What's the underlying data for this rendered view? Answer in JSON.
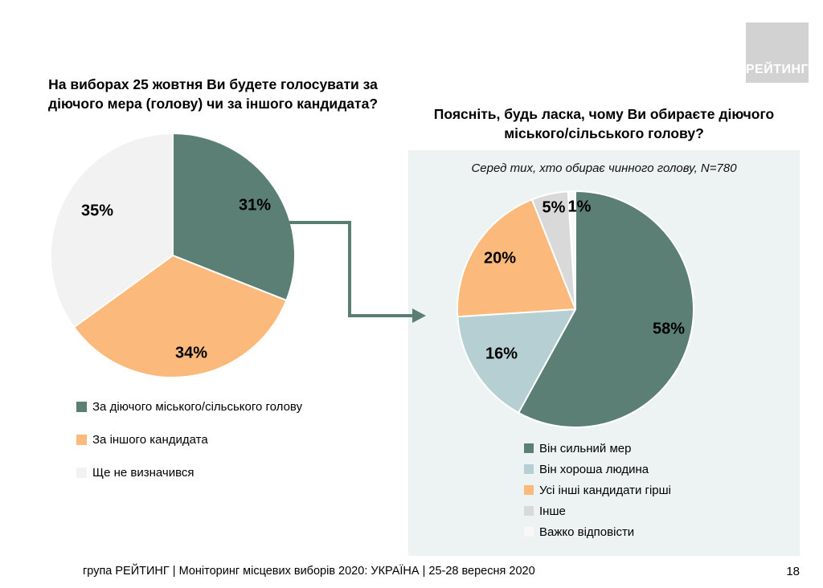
{
  "slide": {
    "logo_text": "РЕЙТИНГ",
    "footer": "група РЕЙТИНГ | Моніторинг місцевих виборів 2020: УКРАЇНА | 25-28 вересня 2020",
    "page_number": "18"
  },
  "colors": {
    "green": "#5b7f74",
    "orange": "#fbb97b",
    "undecided_gray": "#f2f2f2",
    "light_blue": "#b6cfd3",
    "other_gray": "#d9d9d9",
    "white_slice": "#faf8f6",
    "panel_bg": "#edf3f3",
    "arrow": "#5b7e73",
    "logo_bg": "#d2d2d2"
  },
  "chart_data": [
    {
      "type": "pie",
      "title": "На виборах 25 жовтня Ви будете голосувати за діючого мера (голову) чи за іншого кандидата?",
      "start_angle_deg": 0,
      "direction": "clockwise",
      "legend_position": "bottom-left",
      "slices": [
        {
          "label": "За діючого міського/сільського голову",
          "value": 31,
          "pct": "31%",
          "color": "#5b7f74"
        },
        {
          "label": "За іншого кандидата",
          "value": 34,
          "pct": "34%",
          "color": "#fbb97b"
        },
        {
          "label": "Ще не визначився",
          "value": 35,
          "pct": "35%",
          "color": "#f2f2f2"
        }
      ]
    },
    {
      "type": "pie",
      "title": "Поясніть, будь ласка, чому Ви обираєте діючого міського/сільського голову?",
      "subtitle": "Серед тих, хто обирає чинного голову, N=780",
      "start_angle_deg": 0,
      "direction": "clockwise",
      "legend_position": "bottom",
      "slices": [
        {
          "label": "Він сильний мер",
          "value": 58,
          "pct": "58%",
          "color": "#5b7f74"
        },
        {
          "label": "Він хороша людина",
          "value": 16,
          "pct": "16%",
          "color": "#b6cfd3"
        },
        {
          "label": "Усі інші кандидати гірші",
          "value": 20,
          "pct": "20%",
          "color": "#fbb97b"
        },
        {
          "label": "Інше",
          "value": 5,
          "pct": "5%",
          "color": "#d9d9d9"
        },
        {
          "label": "Важко відповісти",
          "value": 1,
          "pct": "1%",
          "color": "#faf8f6"
        }
      ]
    }
  ]
}
